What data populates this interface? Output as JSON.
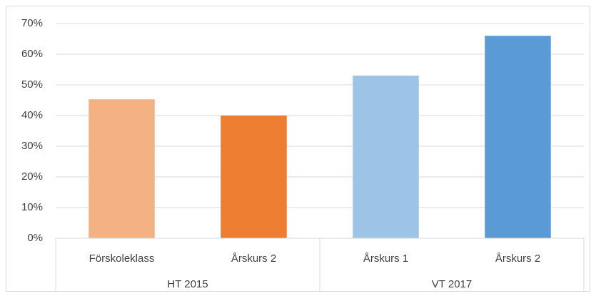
{
  "chart_data": {
    "type": "bar",
    "groups": [
      {
        "name": "HT 2015",
        "categories": [
          "Förskoleklass",
          "Årskurs 2"
        ],
        "values": [
          45.3,
          40
        ],
        "colors": [
          "#f4b183",
          "#ed7d31"
        ]
      },
      {
        "name": "VT 2017",
        "categories": [
          "Årskurs 1",
          "Årskurs 2"
        ],
        "values": [
          53,
          66
        ],
        "colors": [
          "#9dc3e6",
          "#5b9bd5"
        ]
      }
    ],
    "ylim": [
      0,
      70
    ],
    "yticks": [
      {
        "value": 0,
        "label": "0%"
      },
      {
        "value": 10,
        "label": "10%"
      },
      {
        "value": 20,
        "label": "20%"
      },
      {
        "value": 30,
        "label": "30%"
      },
      {
        "value": 40,
        "label": "40%"
      },
      {
        "value": 50,
        "label": "50%"
      },
      {
        "value": 60,
        "label": "60%"
      },
      {
        "value": 70,
        "label": "70%"
      }
    ],
    "grid": true
  }
}
